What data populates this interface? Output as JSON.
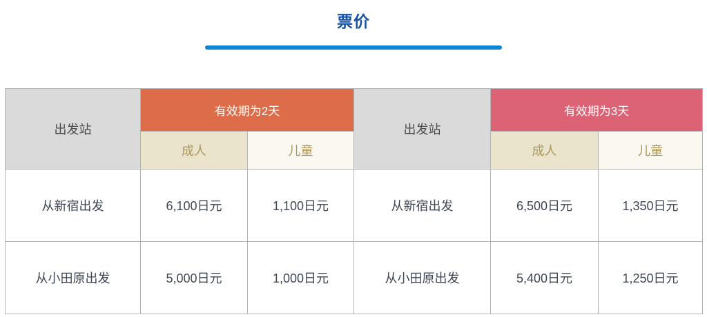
{
  "page": {
    "title": "票价"
  },
  "colors": {
    "title_blue": "#1553a8",
    "divider_blue": "#0e86d3",
    "group_2day_orange": "#dc6c4a",
    "group_3day_pink": "#dc6375",
    "station_header_gray": "#dadada",
    "adult_beige": "#eae4cc",
    "child_cream": "#faf8f0",
    "subheader_gold_text": "#ab9458",
    "cell_border_gray": "#b2b2b2"
  },
  "table": {
    "station_header": "出发站",
    "groups": [
      {
        "label": "有效期为2天",
        "columns": [
          "成人",
          "儿童"
        ]
      },
      {
        "label": "有效期为3天",
        "columns": [
          "成人",
          "儿童"
        ]
      }
    ],
    "rows": [
      [
        "从新宿出发",
        "6,100日元",
        "1,100日元",
        "从新宿出发",
        "6,500日元",
        "1,350日元"
      ],
      [
        "从小田原出发",
        "5,000日元",
        "1,000日元",
        "从小田原出发",
        "5,400日元",
        "1,250日元"
      ]
    ]
  }
}
